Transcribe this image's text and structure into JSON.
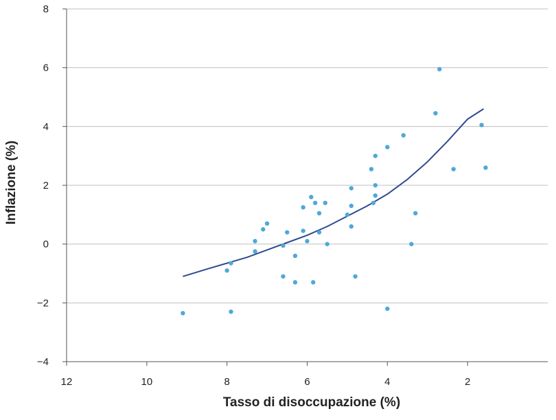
{
  "chart_data": {
    "type": "scatter",
    "title": "",
    "xlabel": "Tasso di disoccupazione (%)",
    "ylabel": "Inflazione (%)",
    "x_reversed": true,
    "xlim": [
      12,
      0
    ],
    "ylim": [
      -4,
      8
    ],
    "x_ticks": [
      12,
      10,
      8,
      6,
      4,
      2
    ],
    "y_ticks": [
      -4,
      -2,
      0,
      2,
      4,
      6,
      8
    ],
    "x_tick_labels": [
      "12",
      "10",
      "8",
      "6",
      "4",
      "2"
    ],
    "y_tick_labels": [
      "−4",
      "−2",
      "0",
      "2",
      "4",
      "6",
      "8"
    ],
    "grid": "horizontal",
    "legend": "none",
    "colors": {
      "points": "#4fa8d8",
      "curve": "#2e4a8f",
      "grid": "#bfbfbf",
      "axis": "#555555"
    },
    "points": [
      [
        9.1,
        -2.35
      ],
      [
        8.0,
        -0.9
      ],
      [
        7.9,
        -0.65
      ],
      [
        7.9,
        -2.3
      ],
      [
        7.3,
        0.1
      ],
      [
        7.3,
        -0.25
      ],
      [
        7.1,
        0.5
      ],
      [
        7.0,
        0.7
      ],
      [
        6.6,
        -0.05
      ],
      [
        6.6,
        -1.1
      ],
      [
        6.5,
        0.4
      ],
      [
        6.3,
        -0.4
      ],
      [
        6.3,
        -1.3
      ],
      [
        6.1,
        1.25
      ],
      [
        6.1,
        0.45
      ],
      [
        6.0,
        0.1
      ],
      [
        5.9,
        1.6
      ],
      [
        5.85,
        -1.3
      ],
      [
        5.8,
        1.4
      ],
      [
        5.7,
        1.05
      ],
      [
        5.7,
        0.4
      ],
      [
        5.55,
        1.4
      ],
      [
        5.5,
        0.0
      ],
      [
        5.0,
        1.0
      ],
      [
        4.9,
        1.9
      ],
      [
        4.9,
        1.3
      ],
      [
        4.9,
        0.6
      ],
      [
        4.8,
        -1.1
      ],
      [
        4.4,
        2.55
      ],
      [
        4.35,
        1.4
      ],
      [
        4.3,
        3.0
      ],
      [
        4.3,
        2.0
      ],
      [
        4.3,
        1.65
      ],
      [
        4.0,
        3.3
      ],
      [
        4.0,
        -2.2
      ],
      [
        3.6,
        3.7
      ],
      [
        3.4,
        0.0
      ],
      [
        3.3,
        1.05
      ],
      [
        2.8,
        4.45
      ],
      [
        2.7,
        5.95
      ],
      [
        2.35,
        2.55
      ],
      [
        1.65,
        4.05
      ],
      [
        1.55,
        2.6
      ]
    ],
    "trend_curve": {
      "x": [
        9.1,
        8.5,
        8.0,
        7.5,
        7.0,
        6.5,
        6.0,
        5.5,
        5.0,
        4.5,
        4.0,
        3.5,
        3.0,
        2.5,
        2.0,
        1.6
      ],
      "y": [
        -1.1,
        -0.85,
        -0.65,
        -0.45,
        -0.2,
        0.05,
        0.3,
        0.6,
        0.95,
        1.3,
        1.7,
        2.2,
        2.8,
        3.5,
        4.25,
        4.6
      ]
    }
  }
}
